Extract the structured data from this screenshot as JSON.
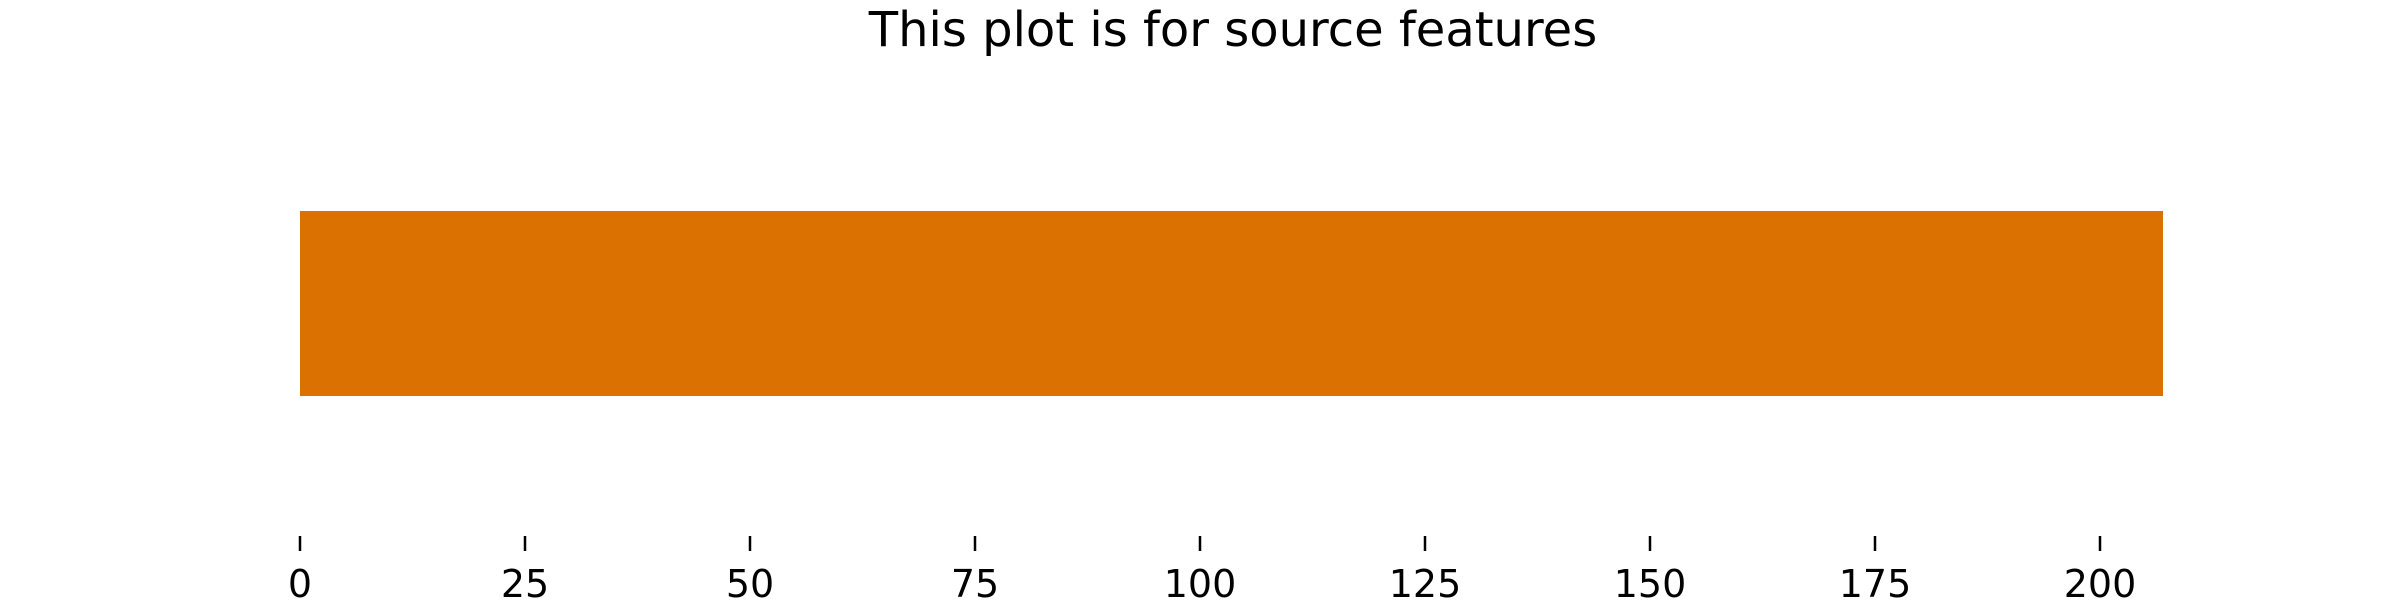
{
  "chart_data": {
    "type": "bar",
    "orientation": "horizontal",
    "title": "This plot is for source features",
    "xlabel": "",
    "ylabel": "",
    "categories": [
      ""
    ],
    "values": [
      207
    ],
    "xlim": [
      0,
      207
    ],
    "xticks": [
      0,
      25,
      50,
      75,
      100,
      125,
      150,
      175,
      200
    ],
    "bar_color": "#DB7100",
    "grid": false,
    "legend": "none"
  }
}
